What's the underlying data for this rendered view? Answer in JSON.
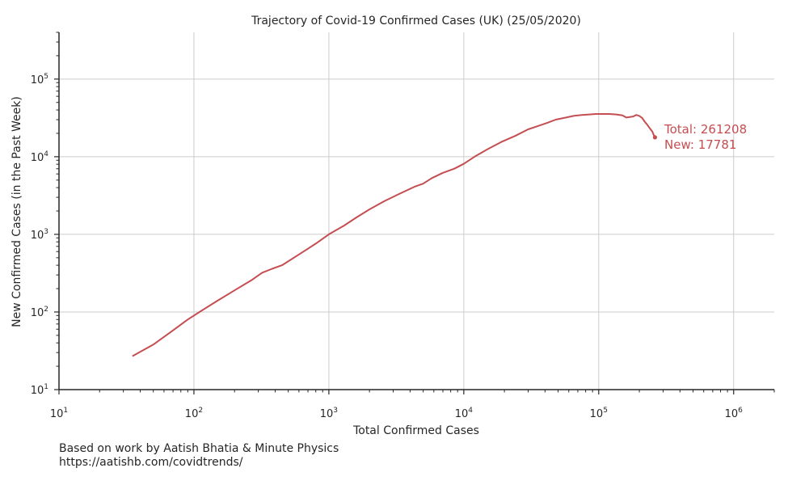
{
  "chart_data": {
    "type": "line",
    "title": "Trajectory of Covid-19 Confirmed Cases (UK) (25/05/2020)",
    "xlabel": "Total Confirmed Cases",
    "ylabel": "New Confirmed Cases (in the Past Week)",
    "xscale": "log",
    "yscale": "log",
    "xlim": [
      10,
      2000000
    ],
    "ylim": [
      10,
      400000
    ],
    "grid": true,
    "x_ticks": [
      {
        "value": 10,
        "base": "10",
        "exp": "1"
      },
      {
        "value": 100,
        "base": "10",
        "exp": "2"
      },
      {
        "value": 1000,
        "base": "10",
        "exp": "3"
      },
      {
        "value": 10000,
        "base": "10",
        "exp": "4"
      },
      {
        "value": 100000,
        "base": "10",
        "exp": "5"
      },
      {
        "value": 1000000,
        "base": "10",
        "exp": "6"
      }
    ],
    "y_ticks": [
      {
        "value": 10,
        "base": "10",
        "exp": "1"
      },
      {
        "value": 100,
        "base": "10",
        "exp": "2"
      },
      {
        "value": 1000,
        "base": "10",
        "exp": "3"
      },
      {
        "value": 10000,
        "base": "10",
        "exp": "4"
      },
      {
        "value": 100000,
        "base": "10",
        "exp": "5"
      }
    ],
    "series": [
      {
        "color": "#c44e52",
        "x": [
          35,
          50,
          70,
          90,
          115,
          150,
          200,
          270,
          320,
          380,
          450,
          600,
          800,
          1000,
          1300,
          1600,
          2000,
          2600,
          3300,
          4300,
          5000,
          5800,
          7000,
          8500,
          10000,
          12000,
          15000,
          19000,
          24000,
          30000,
          36000,
          42000,
          48000,
          55000,
          65000,
          75000,
          85000,
          95000,
          105000,
          120000,
          135000,
          150000,
          160000,
          170000,
          180000,
          190000,
          200000,
          210000,
          220000,
          230000,
          240000,
          250000,
          256000,
          261208
        ],
        "y": [
          27,
          38,
          58,
          80,
          105,
          140,
          190,
          260,
          320,
          360,
          400,
          550,
          760,
          1000,
          1300,
          1650,
          2100,
          2700,
          3300,
          4100,
          4500,
          5300,
          6200,
          7000,
          8100,
          10000,
          12500,
          15500,
          18500,
          22500,
          25000,
          27500,
          30000,
          31500,
          33500,
          34500,
          35000,
          35500,
          35500,
          35500,
          35000,
          34000,
          32000,
          32500,
          33000,
          34500,
          33500,
          31500,
          28000,
          25500,
          23000,
          21000,
          19000,
          17781
        ]
      }
    ],
    "annotation": {
      "total_label": "Total: 261208",
      "new_label": "New: 17781"
    }
  },
  "credit": {
    "line1": "Based on work by Aatish Bhatia & Minute Physics",
    "line2": "https://aatishb.com/covidtrends/"
  }
}
